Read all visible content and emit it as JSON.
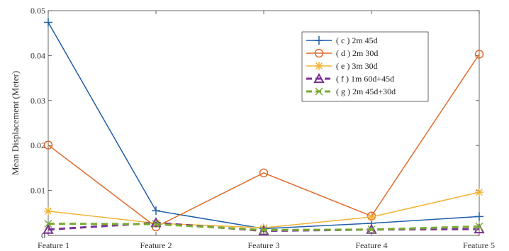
{
  "chart_data": {
    "type": "line",
    "ylabel": "Mean Displacement (Meter)",
    "xlabel": "",
    "categories": [
      "Feature 1",
      "Feature 2",
      "Feature 3",
      "Feature 4",
      "Feature 5"
    ],
    "ylim": [
      0,
      0.05
    ],
    "yticks": [
      "0",
      "0.01",
      "0.02",
      "0.03",
      "0.04",
      "0.05"
    ],
    "grid": false,
    "legend_position": "top-right",
    "series": [
      {
        "name": "( c )  2m 45d",
        "color": "#1f5fa8",
        "marker": "plus",
        "dashed": false,
        "values": [
          0.0474,
          0.0055,
          0.0015,
          0.0027,
          0.0042
        ]
      },
      {
        "name": "( d )  2m 30d",
        "color": "#e06a2c",
        "marker": "circle",
        "dashed": false,
        "values": [
          0.0201,
          0.0019,
          0.0139,
          0.0043,
          0.0403
        ]
      },
      {
        "name": "( e )  3m 30d",
        "color": "#f0b436",
        "marker": "star",
        "dashed": false,
        "values": [
          0.0054,
          0.0027,
          0.0017,
          0.0041,
          0.0096
        ]
      },
      {
        "name": "( f )  1m 60d+45d",
        "color": "#7b3294",
        "marker": "triangle",
        "dashed": true,
        "values": [
          0.0013,
          0.0028,
          0.001,
          0.0013,
          0.0014
        ]
      },
      {
        "name": "( g ) 2m 45d+30d",
        "color": "#77ac30",
        "marker": "x",
        "dashed": true,
        "values": [
          0.0026,
          0.0025,
          0.0012,
          0.0013,
          0.002
        ]
      }
    ]
  }
}
